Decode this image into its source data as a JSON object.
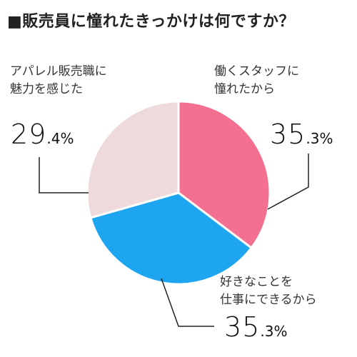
{
  "title": "■販売員に憧れたきっかけは何ですか？",
  "chart_data": {
    "type": "pie",
    "title": "■販売員に憧れたきっかけは何ですか？",
    "slices": [
      {
        "label_lines": [
          "働くスタッフに",
          "憧れたから"
        ],
        "value": 35.3,
        "pct_int": "35",
        "pct_dec": ".3%",
        "color": "#f47090"
      },
      {
        "label_lines": [
          "好きなことを",
          "仕事にできるから"
        ],
        "value": 35.3,
        "pct_int": "35",
        "pct_dec": ".3%",
        "color": "#1da6ef"
      },
      {
        "label_lines": [
          "アパレル販売職に",
          "魅力を感じた"
        ],
        "value": 29.4,
        "pct_int": "29",
        "pct_dec": ".4%",
        "color": "#efdadb"
      }
    ]
  }
}
